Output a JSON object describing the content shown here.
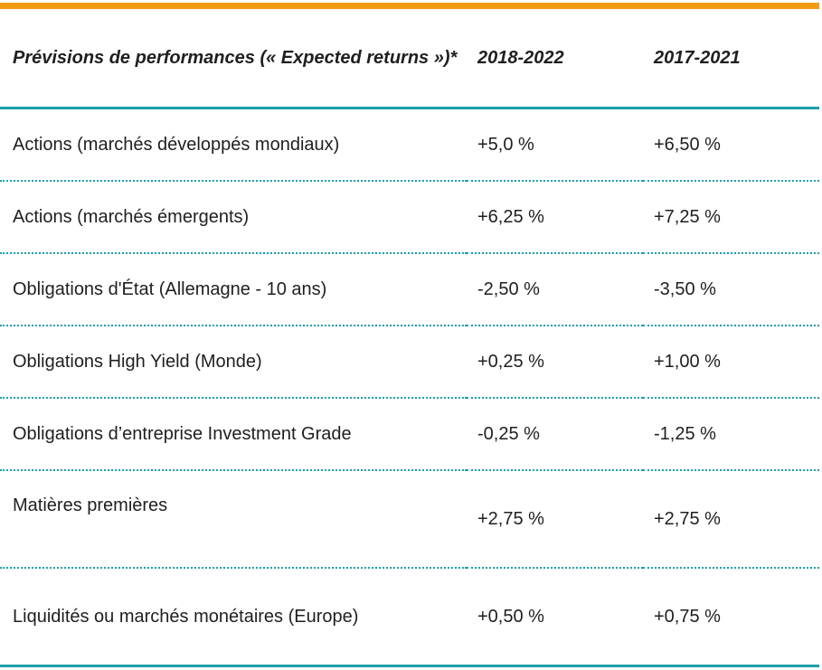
{
  "accent_colors": {
    "top_bar": "#f39c12",
    "rules": "#1a9fab"
  },
  "table": {
    "header": {
      "title": "Prévisions de performances (« Expected returns »)*",
      "period_1": "2018-2022",
      "period_2": "2017-2021"
    },
    "rows": [
      {
        "label": "Actions (marchés développés mondiaux)",
        "v1": "+5,0 %",
        "v2": "+6,50 %"
      },
      {
        "label": "Actions (marchés émergents)",
        "v1": "+6,25 %",
        "v2": "+7,25 %"
      },
      {
        "label": "Obligations d'État (Allemagne - 10 ans)",
        "v1": "-2,50 %",
        "v2": "-3,50 %"
      },
      {
        "label": "Obligations High Yield (Monde)",
        "v1": "+0,25 %",
        "v2": "+1,00 %"
      },
      {
        "label": "Obligations d’entreprise Investment Grade",
        "v1": "-0,25 %",
        "v2": "-1,25 %"
      },
      {
        "label": "Matières premières",
        "v1": "+2,75 %",
        "v2": "+2,75 %"
      },
      {
        "label": "Liquidités ou marchés monétaires (Europe)",
        "v1": "+0,50 %",
        "v2": "+0,75 %"
      }
    ]
  }
}
